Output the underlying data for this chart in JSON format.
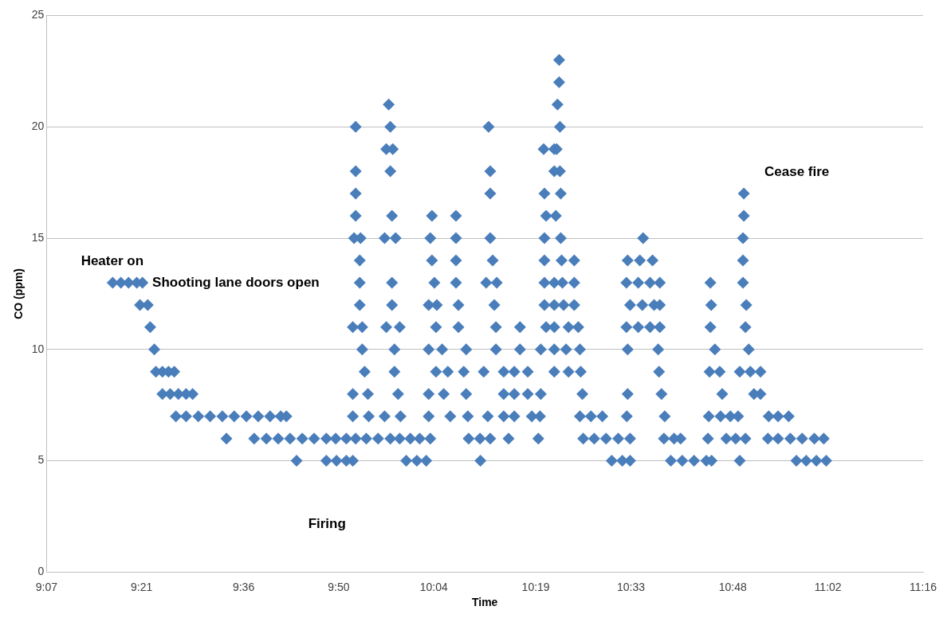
{
  "chart_data": {
    "type": "scatter",
    "xlabel": "Time",
    "ylabel": "CO (ppm)",
    "marker": "diamond",
    "grid": "y",
    "legend": false,
    "xlim": [
      9.1167,
      11.2667
    ],
    "xticks": [
      {
        "value": 9.1167,
        "label": "9:07"
      },
      {
        "value": 9.35,
        "label": "9:21"
      },
      {
        "value": 9.6,
        "label": "9:36"
      },
      {
        "value": 9.8333,
        "label": "9:50"
      },
      {
        "value": 10.0667,
        "label": "10:04"
      },
      {
        "value": 10.3167,
        "label": "10:19"
      },
      {
        "value": 10.55,
        "label": "10:33"
      },
      {
        "value": 10.8,
        "label": "10:48"
      },
      {
        "value": 11.0333,
        "label": "11:02"
      },
      {
        "value": 11.2667,
        "label": "11:16"
      }
    ],
    "ylim": [
      0,
      25
    ],
    "yticks": [
      0,
      5,
      10,
      15,
      20,
      25
    ],
    "annotations": [
      "Heater on",
      "Shooting lane doors open",
      "Firing",
      "Cease fire"
    ],
    "series": [
      {
        "color": "#4a7ebb",
        "x": [
          9.73,
          9.803,
          9.828,
          9.852,
          9.868,
          9.999,
          10.025,
          10.048,
          10.181,
          10.503,
          10.529,
          10.548,
          10.648,
          10.676,
          10.705,
          10.735,
          10.748,
          10.817,
          10.956,
          10.98,
          11.005,
          11.029,
          9.558,
          9.626,
          9.656,
          9.685,
          9.714,
          9.744,
          9.773,
          9.803,
          9.826,
          9.852,
          9.875,
          9.901,
          9.93,
          9.96,
          9.983,
          10.009,
          10.032,
          10.058,
          10.152,
          10.18,
          10.205,
          10.25,
          10.323,
          10.433,
          10.46,
          10.489,
          10.519,
          10.548,
          10.631,
          10.656,
          10.672,
          10.739,
          10.784,
          10.807,
          10.831,
          10.886,
          10.911,
          10.941,
          10.97,
          11.0,
          11.023,
          9.434,
          9.459,
          9.489,
          9.518,
          9.548,
          9.577,
          9.607,
          9.636,
          9.665,
          9.691,
          9.705,
          9.868,
          9.907,
          9.946,
          9.985,
          10.054,
          10.107,
          10.15,
          10.199,
          10.238,
          10.264,
          10.307,
          10.327,
          10.425,
          10.452,
          10.48,
          10.54,
          10.633,
          10.741,
          10.77,
          10.794,
          10.813,
          10.888,
          10.911,
          10.937,
          9.401,
          9.42,
          9.44,
          9.459,
          9.475,
          9.868,
          9.905,
          9.979,
          10.054,
          10.091,
          10.146,
          10.238,
          10.264,
          10.297,
          10.329,
          10.431,
          10.542,
          10.625,
          10.774,
          10.852,
          10.868,
          9.385,
          9.401,
          9.416,
          9.43,
          9.897,
          9.97,
          10.072,
          10.101,
          10.14,
          10.189,
          10.238,
          10.264,
          10.297,
          10.362,
          10.397,
          10.427,
          10.619,
          10.743,
          10.768,
          10.817,
          10.843,
          10.868,
          9.381,
          9.891,
          9.97,
          10.054,
          10.087,
          10.146,
          10.219,
          10.278,
          10.329,
          10.362,
          10.391,
          10.425,
          10.542,
          10.617,
          10.756,
          10.839,
          9.371,
          9.868,
          9.891,
          9.95,
          9.983,
          10.072,
          10.127,
          10.219,
          10.278,
          10.342,
          10.362,
          10.397,
          10.421,
          10.539,
          10.568,
          10.597,
          10.621,
          10.745,
          10.831,
          9.346,
          9.365,
          9.885,
          9.964,
          10.054,
          10.074,
          10.127,
          10.215,
          10.338,
          10.362,
          10.385,
          10.411,
          10.548,
          10.578,
          10.607,
          10.621,
          10.747,
          10.833,
          9.279,
          9.299,
          9.318,
          9.338,
          9.352,
          9.885,
          9.964,
          10.068,
          10.121,
          10.195,
          10.221,
          10.338,
          10.362,
          10.382,
          10.411,
          10.539,
          10.568,
          10.597,
          10.621,
          10.745,
          10.825,
          9.885,
          10.062,
          10.121,
          10.211,
          10.338,
          10.38,
          10.411,
          10.542,
          10.572,
          10.603,
          10.825,
          9.871,
          9.887,
          9.946,
          9.973,
          10.058,
          10.121,
          10.205,
          10.338,
          10.378,
          10.58,
          10.825,
          9.875,
          9.964,
          10.062,
          10.121,
          10.342,
          10.366,
          10.827,
          9.875,
          10.205,
          10.338,
          10.378,
          10.827,
          9.875,
          9.96,
          10.205,
          10.362,
          10.376,
          9.95,
          9.966,
          10.336,
          10.362,
          10.368,
          9.875,
          9.96,
          10.201,
          10.376,
          9.956,
          10.37,
          10.374,
          10.374
        ],
        "values": [
          5,
          5,
          5,
          5,
          5,
          5,
          5,
          5,
          5,
          5,
          5,
          5,
          5,
          5,
          5,
          5,
          5,
          5,
          5,
          5,
          5,
          5,
          6,
          6,
          6,
          6,
          6,
          6,
          6,
          6,
          6,
          6,
          6,
          6,
          6,
          6,
          6,
          6,
          6,
          6,
          6,
          6,
          6,
          6,
          6,
          6,
          6,
          6,
          6,
          6,
          6,
          6,
          6,
          6,
          6,
          6,
          6,
          6,
          6,
          6,
          6,
          6,
          6,
          7,
          7,
          7,
          7,
          7,
          7,
          7,
          7,
          7,
          7,
          7,
          7,
          7,
          7,
          7,
          7,
          7,
          7,
          7,
          7,
          7,
          7,
          7,
          7,
          7,
          7,
          7,
          7,
          7,
          7,
          7,
          7,
          7,
          7,
          7,
          8,
          8,
          8,
          8,
          8,
          8,
          8,
          8,
          8,
          8,
          8,
          8,
          8,
          8,
          8,
          8,
          8,
          8,
          8,
          8,
          8,
          9,
          9,
          9,
          9,
          9,
          9,
          9,
          9,
          9,
          9,
          9,
          9,
          9,
          9,
          9,
          9,
          9,
          9,
          9,
          9,
          9,
          9,
          10,
          10,
          10,
          10,
          10,
          10,
          10,
          10,
          10,
          10,
          10,
          10,
          10,
          10,
          10,
          10,
          11,
          11,
          11,
          11,
          11,
          11,
          11,
          11,
          11,
          11,
          11,
          11,
          11,
          11,
          11,
          11,
          11,
          11,
          11,
          12,
          12,
          12,
          12,
          12,
          12,
          12,
          12,
          12,
          12,
          12,
          12,
          12,
          12,
          12,
          12,
          12,
          12,
          13,
          13,
          13,
          13,
          13,
          13,
          13,
          13,
          13,
          13,
          13,
          13,
          13,
          13,
          13,
          13,
          13,
          13,
          13,
          13,
          13,
          14,
          14,
          14,
          14,
          14,
          14,
          14,
          14,
          14,
          14,
          14,
          15,
          15,
          15,
          15,
          15,
          15,
          15,
          15,
          15,
          15,
          15,
          16,
          16,
          16,
          16,
          16,
          16,
          16,
          17,
          17,
          17,
          17,
          17,
          18,
          18,
          18,
          18,
          18,
          19,
          19,
          19,
          19,
          19,
          20,
          20,
          20,
          20,
          21,
          21,
          22,
          23
        ]
      }
    ]
  }
}
